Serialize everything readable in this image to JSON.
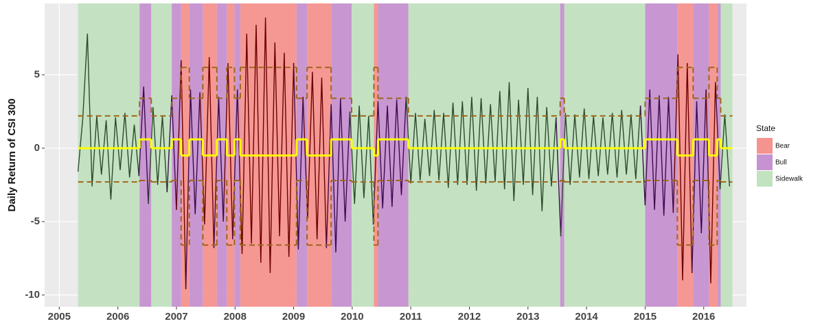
{
  "chart_data": {
    "type": "line",
    "y_label": "Daily Return of CSI 300",
    "xlim": [
      2004.75,
      2016.73
    ],
    "ylim": [
      -10.8,
      9.86
    ],
    "xticks": [
      2005,
      2006,
      2007,
      2008,
      2009,
      2010,
      2011,
      2012,
      2013,
      2014,
      2015,
      2016
    ],
    "yticks": [
      -10,
      -5,
      0,
      5
    ],
    "grid": true,
    "legend": "right",
    "legend_title": "State",
    "states": [
      {
        "name": "Bear",
        "color": "#f5938e",
        "line_color": "#6b0000",
        "mean": -0.5,
        "upper": 5.5,
        "lower": -6.6
      },
      {
        "name": "Bull",
        "color": "#c692d1",
        "line_color": "#3e0a4f",
        "mean": 0.6,
        "upper": 3.4,
        "lower": -2.2
      },
      {
        "name": "Sidewalk",
        "color": "#c2e2c0",
        "line_color": "#2c4a2c",
        "mean": 0,
        "upper": 2.2,
        "lower": -2.3
      }
    ],
    "mean_color": "#ffff00",
    "band_color": "#a0661a",
    "periods": [
      {
        "start": 2005.32,
        "end": 2006.37,
        "state": "Sidewalk"
      },
      {
        "start": 2006.37,
        "end": 2006.57,
        "state": "Bull"
      },
      {
        "start": 2006.57,
        "end": 2006.92,
        "state": "Sidewalk"
      },
      {
        "start": 2006.92,
        "end": 2007.08,
        "state": "Bull"
      },
      {
        "start": 2007.08,
        "end": 2007.22,
        "state": "Bear"
      },
      {
        "start": 2007.22,
        "end": 2007.45,
        "state": "Bull"
      },
      {
        "start": 2007.45,
        "end": 2007.69,
        "state": "Bear"
      },
      {
        "start": 2007.69,
        "end": 2007.86,
        "state": "Bull"
      },
      {
        "start": 2007.86,
        "end": 2007.99,
        "state": "Bear"
      },
      {
        "start": 2007.99,
        "end": 2008.09,
        "state": "Bull"
      },
      {
        "start": 2008.09,
        "end": 2009.05,
        "state": "Bear"
      },
      {
        "start": 2009.05,
        "end": 2009.23,
        "state": "Bull"
      },
      {
        "start": 2009.23,
        "end": 2009.64,
        "state": "Bear"
      },
      {
        "start": 2009.64,
        "end": 2009.99,
        "state": "Bull"
      },
      {
        "start": 2009.99,
        "end": 2010.37,
        "state": "Sidewalk"
      },
      {
        "start": 2010.37,
        "end": 2010.44,
        "state": "Bear"
      },
      {
        "start": 2010.44,
        "end": 2010.96,
        "state": "Bull"
      },
      {
        "start": 2010.96,
        "end": 2013.55,
        "state": "Sidewalk"
      },
      {
        "start": 2013.55,
        "end": 2013.62,
        "state": "Bull"
      },
      {
        "start": 2013.62,
        "end": 2015.0,
        "state": "Sidewalk"
      },
      {
        "start": 2015.0,
        "end": 2015.55,
        "state": "Bull"
      },
      {
        "start": 2015.55,
        "end": 2015.82,
        "state": "Bear"
      },
      {
        "start": 2015.82,
        "end": 2016.09,
        "state": "Bull"
      },
      {
        "start": 2016.09,
        "end": 2016.23,
        "state": "Bear"
      },
      {
        "start": 2016.23,
        "end": 2016.29,
        "state": "Bull"
      },
      {
        "start": 2016.29,
        "end": 2016.49,
        "state": "Sidewalk"
      }
    ],
    "x": [
      2005.32,
      2005.4,
      2005.48,
      2005.56,
      2005.64,
      2005.72,
      2005.8,
      2005.88,
      2005.96,
      2006.04,
      2006.12,
      2006.2,
      2006.28,
      2006.36,
      2006.44,
      2006.52,
      2006.6,
      2006.68,
      2006.76,
      2006.84,
      2006.92,
      2007.0,
      2007.08,
      2007.16,
      2007.24,
      2007.32,
      2007.4,
      2007.48,
      2007.56,
      2007.64,
      2007.72,
      2007.8,
      2007.88,
      2007.96,
      2008.04,
      2008.12,
      2008.2,
      2008.28,
      2008.36,
      2008.44,
      2008.52,
      2008.6,
      2008.68,
      2008.76,
      2008.84,
      2008.92,
      2009.0,
      2009.08,
      2009.16,
      2009.24,
      2009.32,
      2009.4,
      2009.48,
      2009.56,
      2009.64,
      2009.72,
      2009.8,
      2009.88,
      2009.96,
      2010.04,
      2010.12,
      2010.2,
      2010.28,
      2010.36,
      2010.44,
      2010.52,
      2010.6,
      2010.68,
      2010.76,
      2010.84,
      2010.92,
      2011.0,
      2011.08,
      2011.16,
      2011.24,
      2011.32,
      2011.4,
      2011.48,
      2011.56,
      2011.64,
      2011.72,
      2011.8,
      2011.88,
      2011.96,
      2012.04,
      2012.12,
      2012.2,
      2012.28,
      2012.36,
      2012.44,
      2012.52,
      2012.6,
      2012.68,
      2012.76,
      2012.84,
      2012.92,
      2013.0,
      2013.08,
      2013.16,
      2013.24,
      2013.32,
      2013.4,
      2013.48,
      2013.56,
      2013.64,
      2013.72,
      2013.8,
      2013.88,
      2013.96,
      2014.04,
      2014.12,
      2014.2,
      2014.28,
      2014.36,
      2014.44,
      2014.52,
      2014.6,
      2014.68,
      2014.76,
      2014.84,
      2014.92,
      2015.0,
      2015.08,
      2015.16,
      2015.24,
      2015.32,
      2015.4,
      2015.48,
      2015.56,
      2015.64,
      2015.72,
      2015.8,
      2015.88,
      2015.96,
      2016.04,
      2016.12,
      2016.2,
      2016.28,
      2016.36,
      2016.44
    ],
    "values": [
      -1.6,
      2.0,
      7.8,
      -2.6,
      2.2,
      -1.8,
      1.9,
      -3.5,
      2.1,
      -1.5,
      2.4,
      -2.0,
      1.6,
      -1.9,
      4.2,
      -3.8,
      2.8,
      -2.5,
      2.2,
      -3.0,
      3.6,
      -4.2,
      6.0,
      -9.6,
      4.0,
      -4.5,
      3.8,
      -5.2,
      6.2,
      -6.8,
      3.5,
      -5.0,
      5.8,
      -6.2,
      4.0,
      -7.2,
      7.8,
      -6.5,
      8.4,
      -7.8,
      8.9,
      -8.5,
      7.2,
      -6.0,
      6.5,
      -7.4,
      5.8,
      -6.9,
      3.5,
      -4.8,
      5.2,
      -6.2,
      4.8,
      -6.8,
      3.0,
      -7.1,
      3.4,
      -5.0,
      2.5,
      -3.8,
      2.9,
      -3.4,
      2.2,
      -5.2,
      3.2,
      -4.1,
      2.9,
      -4.0,
      3.3,
      -3.2,
      3.5,
      -2.4,
      2.4,
      -2.2,
      2.0,
      -1.9,
      2.6,
      -2.2,
      2.4,
      -2.7,
      3.1,
      -2.5,
      3.2,
      -2.5,
      3.5,
      -2.9,
      3.4,
      -2.4,
      3.0,
      -2.3,
      3.9,
      -2.8,
      4.5,
      -3.6,
      3.3,
      -2.5,
      4.1,
      -3.2,
      3.5,
      -4.3,
      2.8,
      -2.6,
      2.1,
      -6.0,
      2.4,
      -2.5,
      2.3,
      -2.0,
      2.7,
      -2.1,
      2.2,
      -1.9,
      2.1,
      -1.8,
      2.4,
      -2.0,
      2.6,
      -1.8,
      2.3,
      -2.1,
      2.9,
      -3.9,
      4.0,
      -4.2,
      3.6,
      -4.6,
      3.5,
      -4.4,
      6.4,
      -9.0,
      5.8,
      -8.5,
      3.2,
      -5.8,
      4.0,
      -9.2,
      4.5,
      -2.8,
      2.3,
      -2.6
    ]
  }
}
